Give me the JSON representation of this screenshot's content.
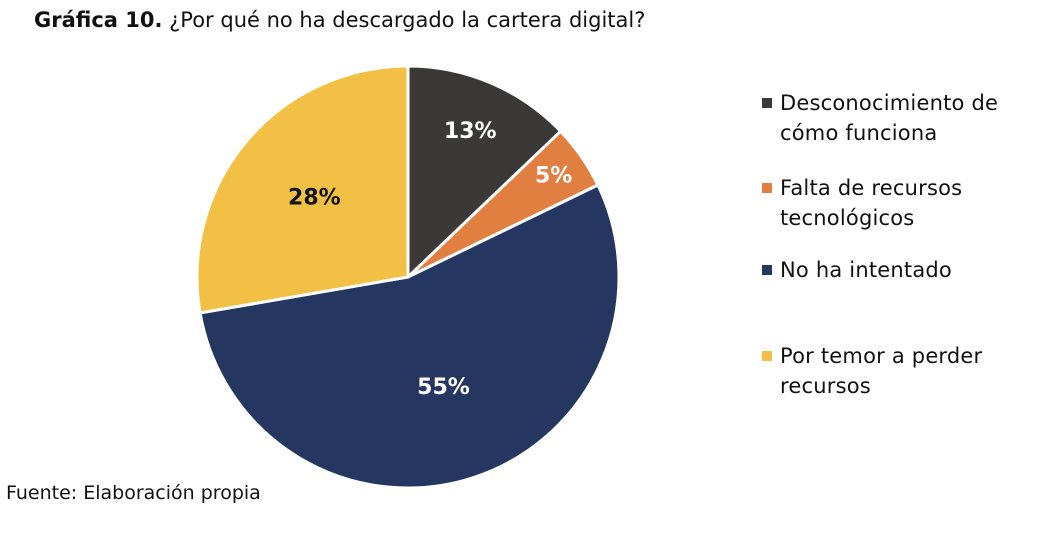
{
  "title": {
    "prefix": "Gráfica 10.",
    "text": " ¿Por qué no ha descargado la cartera digital?"
  },
  "source": "Fuente: Elaboración propia",
  "chart_data": {
    "type": "pie",
    "title": "¿Por qué no ha descargado la cartera digital?",
    "categories": [
      "Desconocimiento de cómo funciona",
      "Falta de recursos tecnológicos",
      "No ha intentado",
      "Por temor a perder recursos"
    ],
    "values": [
      13,
      5,
      55,
      28
    ],
    "labels": [
      "13%",
      "5%",
      "55%",
      "28%"
    ],
    "colors": [
      "#3b3838",
      "#e07f3f",
      "#253660",
      "#f2c045"
    ],
    "label_colors": [
      "#ffffff",
      "#ffffff",
      "#ffffff",
      "#111111"
    ],
    "legend_position": "right"
  },
  "legend": {
    "items": [
      {
        "line1": "Desconocimiento de",
        "line2": "cómo funciona",
        "color": "#3b3838"
      },
      {
        "line1": "Falta de recursos",
        "line2": "tecnológicos",
        "color": "#e07f3f"
      },
      {
        "line1": "No ha intentado",
        "line2": "",
        "color": "#253660"
      },
      {
        "line1": "Por temor a perder",
        "line2": "recursos",
        "color": "#f2c045"
      }
    ]
  }
}
